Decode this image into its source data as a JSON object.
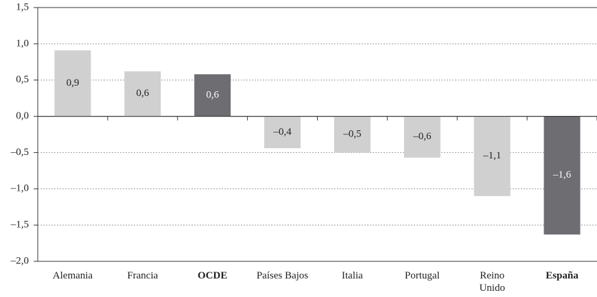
{
  "chart_data": {
    "type": "bar",
    "categories": [
      "Alemania",
      "Francia",
      "OCDE",
      "Países Bajos",
      "Italia",
      "Portugal",
      "Reino\nUnido",
      "España"
    ],
    "values": [
      0.91,
      0.62,
      0.58,
      -0.44,
      -0.5,
      -0.57,
      -1.1,
      -1.63
    ],
    "value_labels": [
      "0,9",
      "0,6",
      "0,6",
      "–0,4",
      "–0,5",
      "–0,6",
      "–1,1",
      "–1,6"
    ],
    "colors": [
      "#d0d0d0",
      "#d0d0d0",
      "#6d6d72",
      "#d0d0d0",
      "#d0d0d0",
      "#d0d0d0",
      "#d0d0d0",
      "#6d6d72"
    ],
    "highlight_color": "#6d6d72",
    "ylim": [
      -2.0,
      1.5
    ],
    "yticks": [
      {
        "value": -2.0,
        "label": "–2,0"
      },
      {
        "value": -1.5,
        "label": "–1,5"
      },
      {
        "value": -1.0,
        "label": "–1,0"
      },
      {
        "value": -0.5,
        "label": "–0,5"
      },
      {
        "value": 0,
        "label": "0,0"
      },
      {
        "value": 0.5,
        "label": "0,5"
      },
      {
        "value": 1.0,
        "label": "1,0"
      },
      {
        "value": 1.5,
        "label": "1,5"
      }
    ],
    "grid": true
  }
}
